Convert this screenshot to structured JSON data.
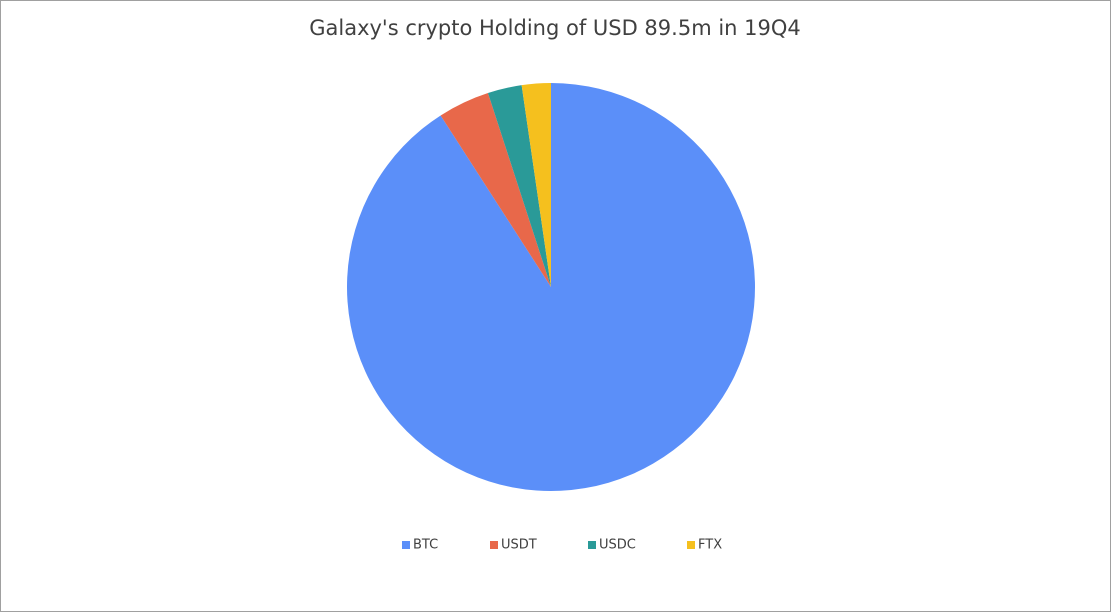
{
  "chart_data": {
    "type": "pie",
    "title": "Galaxy's crypto Holding of USD 89.5m in 19Q4",
    "categories": [
      "BTC",
      "USDT",
      "USDC",
      "FTX"
    ],
    "values": [
      90.9,
      4.1,
      2.7,
      2.3
    ],
    "colors": [
      "#5b8ff9",
      "#e8684a",
      "#2a9a98",
      "#f5c01e"
    ],
    "legend": "bottom"
  }
}
